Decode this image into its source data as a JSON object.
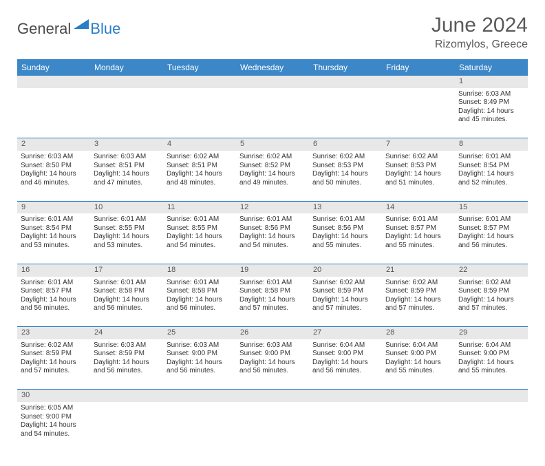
{
  "logo": {
    "general": "General",
    "blue": "Blue"
  },
  "title": "June 2024",
  "subtitle": "Rizomylos, Greece",
  "colors": {
    "header_bg": "#3b87c8",
    "header_text": "#ffffff",
    "daynum_bg": "#e8e8e8",
    "border": "#2a7ec5",
    "title_color": "#5a5a5a",
    "logo_blue": "#2a7ec5",
    "logo_gray": "#4a4a4a"
  },
  "weekdays": [
    "Sunday",
    "Monday",
    "Tuesday",
    "Wednesday",
    "Thursday",
    "Friday",
    "Saturday"
  ],
  "weeks": [
    {
      "nums": [
        "",
        "",
        "",
        "",
        "",
        "",
        "1"
      ],
      "cells": [
        null,
        null,
        null,
        null,
        null,
        null,
        {
          "sunrise": "Sunrise: 6:03 AM",
          "sunset": "Sunset: 8:49 PM",
          "day1": "Daylight: 14 hours",
          "day2": "and 45 minutes."
        }
      ]
    },
    {
      "nums": [
        "2",
        "3",
        "4",
        "5",
        "6",
        "7",
        "8"
      ],
      "cells": [
        {
          "sunrise": "Sunrise: 6:03 AM",
          "sunset": "Sunset: 8:50 PM",
          "day1": "Daylight: 14 hours",
          "day2": "and 46 minutes."
        },
        {
          "sunrise": "Sunrise: 6:03 AM",
          "sunset": "Sunset: 8:51 PM",
          "day1": "Daylight: 14 hours",
          "day2": "and 47 minutes."
        },
        {
          "sunrise": "Sunrise: 6:02 AM",
          "sunset": "Sunset: 8:51 PM",
          "day1": "Daylight: 14 hours",
          "day2": "and 48 minutes."
        },
        {
          "sunrise": "Sunrise: 6:02 AM",
          "sunset": "Sunset: 8:52 PM",
          "day1": "Daylight: 14 hours",
          "day2": "and 49 minutes."
        },
        {
          "sunrise": "Sunrise: 6:02 AM",
          "sunset": "Sunset: 8:53 PM",
          "day1": "Daylight: 14 hours",
          "day2": "and 50 minutes."
        },
        {
          "sunrise": "Sunrise: 6:02 AM",
          "sunset": "Sunset: 8:53 PM",
          "day1": "Daylight: 14 hours",
          "day2": "and 51 minutes."
        },
        {
          "sunrise": "Sunrise: 6:01 AM",
          "sunset": "Sunset: 8:54 PM",
          "day1": "Daylight: 14 hours",
          "day2": "and 52 minutes."
        }
      ]
    },
    {
      "nums": [
        "9",
        "10",
        "11",
        "12",
        "13",
        "14",
        "15"
      ],
      "cells": [
        {
          "sunrise": "Sunrise: 6:01 AM",
          "sunset": "Sunset: 8:54 PM",
          "day1": "Daylight: 14 hours",
          "day2": "and 53 minutes."
        },
        {
          "sunrise": "Sunrise: 6:01 AM",
          "sunset": "Sunset: 8:55 PM",
          "day1": "Daylight: 14 hours",
          "day2": "and 53 minutes."
        },
        {
          "sunrise": "Sunrise: 6:01 AM",
          "sunset": "Sunset: 8:55 PM",
          "day1": "Daylight: 14 hours",
          "day2": "and 54 minutes."
        },
        {
          "sunrise": "Sunrise: 6:01 AM",
          "sunset": "Sunset: 8:56 PM",
          "day1": "Daylight: 14 hours",
          "day2": "and 54 minutes."
        },
        {
          "sunrise": "Sunrise: 6:01 AM",
          "sunset": "Sunset: 8:56 PM",
          "day1": "Daylight: 14 hours",
          "day2": "and 55 minutes."
        },
        {
          "sunrise": "Sunrise: 6:01 AM",
          "sunset": "Sunset: 8:57 PM",
          "day1": "Daylight: 14 hours",
          "day2": "and 55 minutes."
        },
        {
          "sunrise": "Sunrise: 6:01 AM",
          "sunset": "Sunset: 8:57 PM",
          "day1": "Daylight: 14 hours",
          "day2": "and 56 minutes."
        }
      ]
    },
    {
      "nums": [
        "16",
        "17",
        "18",
        "19",
        "20",
        "21",
        "22"
      ],
      "cells": [
        {
          "sunrise": "Sunrise: 6:01 AM",
          "sunset": "Sunset: 8:57 PM",
          "day1": "Daylight: 14 hours",
          "day2": "and 56 minutes."
        },
        {
          "sunrise": "Sunrise: 6:01 AM",
          "sunset": "Sunset: 8:58 PM",
          "day1": "Daylight: 14 hours",
          "day2": "and 56 minutes."
        },
        {
          "sunrise": "Sunrise: 6:01 AM",
          "sunset": "Sunset: 8:58 PM",
          "day1": "Daylight: 14 hours",
          "day2": "and 56 minutes."
        },
        {
          "sunrise": "Sunrise: 6:01 AM",
          "sunset": "Sunset: 8:58 PM",
          "day1": "Daylight: 14 hours",
          "day2": "and 57 minutes."
        },
        {
          "sunrise": "Sunrise: 6:02 AM",
          "sunset": "Sunset: 8:59 PM",
          "day1": "Daylight: 14 hours",
          "day2": "and 57 minutes."
        },
        {
          "sunrise": "Sunrise: 6:02 AM",
          "sunset": "Sunset: 8:59 PM",
          "day1": "Daylight: 14 hours",
          "day2": "and 57 minutes."
        },
        {
          "sunrise": "Sunrise: 6:02 AM",
          "sunset": "Sunset: 8:59 PM",
          "day1": "Daylight: 14 hours",
          "day2": "and 57 minutes."
        }
      ]
    },
    {
      "nums": [
        "23",
        "24",
        "25",
        "26",
        "27",
        "28",
        "29"
      ],
      "cells": [
        {
          "sunrise": "Sunrise: 6:02 AM",
          "sunset": "Sunset: 8:59 PM",
          "day1": "Daylight: 14 hours",
          "day2": "and 57 minutes."
        },
        {
          "sunrise": "Sunrise: 6:03 AM",
          "sunset": "Sunset: 8:59 PM",
          "day1": "Daylight: 14 hours",
          "day2": "and 56 minutes."
        },
        {
          "sunrise": "Sunrise: 6:03 AM",
          "sunset": "Sunset: 9:00 PM",
          "day1": "Daylight: 14 hours",
          "day2": "and 56 minutes."
        },
        {
          "sunrise": "Sunrise: 6:03 AM",
          "sunset": "Sunset: 9:00 PM",
          "day1": "Daylight: 14 hours",
          "day2": "and 56 minutes."
        },
        {
          "sunrise": "Sunrise: 6:04 AM",
          "sunset": "Sunset: 9:00 PM",
          "day1": "Daylight: 14 hours",
          "day2": "and 56 minutes."
        },
        {
          "sunrise": "Sunrise: 6:04 AM",
          "sunset": "Sunset: 9:00 PM",
          "day1": "Daylight: 14 hours",
          "day2": "and 55 minutes."
        },
        {
          "sunrise": "Sunrise: 6:04 AM",
          "sunset": "Sunset: 9:00 PM",
          "day1": "Daylight: 14 hours",
          "day2": "and 55 minutes."
        }
      ]
    },
    {
      "nums": [
        "30",
        "",
        "",
        "",
        "",
        "",
        ""
      ],
      "cells": [
        {
          "sunrise": "Sunrise: 6:05 AM",
          "sunset": "Sunset: 9:00 PM",
          "day1": "Daylight: 14 hours",
          "day2": "and 54 minutes."
        },
        null,
        null,
        null,
        null,
        null,
        null
      ]
    }
  ]
}
